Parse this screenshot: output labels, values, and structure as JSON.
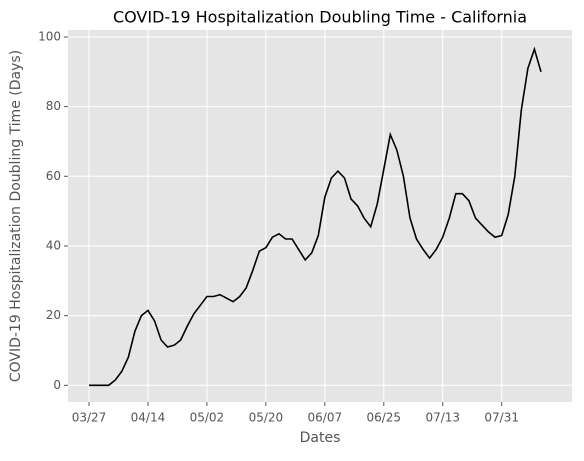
{
  "chart_data": {
    "type": "line",
    "title": "COVID-19 Hospitalization Doubling Time - California",
    "x_label": "Dates",
    "y_label": "COVID-19 Hospitalization Doubling Time (Days)",
    "categories": [
      "03/27",
      "03/29",
      "03/31",
      "04/02",
      "04/04",
      "04/06",
      "04/08",
      "04/10",
      "04/12",
      "04/14",
      "04/16",
      "04/18",
      "04/20",
      "04/22",
      "04/24",
      "04/26",
      "04/28",
      "04/30",
      "05/02",
      "05/04",
      "05/06",
      "05/08",
      "05/10",
      "05/12",
      "05/14",
      "05/16",
      "05/18",
      "05/20",
      "05/22",
      "05/24",
      "05/26",
      "05/28",
      "05/30",
      "06/01",
      "06/03",
      "06/05",
      "06/07",
      "06/09",
      "06/11",
      "06/13",
      "06/15",
      "06/17",
      "06/19",
      "06/21",
      "06/23",
      "06/25",
      "06/27",
      "06/29",
      "07/01",
      "07/03",
      "07/05",
      "07/07",
      "07/09",
      "07/11",
      "07/13",
      "07/15",
      "07/17",
      "07/19",
      "07/21",
      "07/23",
      "07/25",
      "07/27",
      "07/29",
      "07/31",
      "08/02",
      "08/04",
      "08/06",
      "08/08",
      "08/10",
      "08/12"
    ],
    "series": [
      {
        "name": "Doubling Time",
        "color": "#000000",
        "values": [
          0,
          0,
          0,
          0,
          1.5,
          4,
          8,
          15.5,
          20,
          21.5,
          18.5,
          13,
          11,
          11.5,
          13,
          17,
          20.5,
          23,
          25.5,
          25.5,
          26,
          25,
          24,
          25.5,
          28,
          33,
          38.5,
          39.5,
          42.5,
          43.5,
          42,
          42,
          39,
          36,
          38,
          43,
          54,
          59.5,
          61.5,
          59.5,
          53.5,
          51.5,
          48,
          45.5,
          52,
          62,
          72,
          67.5,
          60,
          48,
          42,
          39,
          36.5,
          39,
          42.5,
          48,
          55,
          55,
          53,
          48,
          46,
          44,
          42.5,
          43,
          49,
          60,
          79,
          91,
          96.5,
          90
        ]
      }
    ],
    "xticks": [
      "03/27",
      "04/14",
      "05/02",
      "05/20",
      "06/07",
      "06/25",
      "07/13",
      "07/31"
    ],
    "ylim": [
      -4.8,
      102
    ],
    "yticks": [
      0,
      20,
      40,
      60,
      80,
      100
    ],
    "grid": true
  }
}
